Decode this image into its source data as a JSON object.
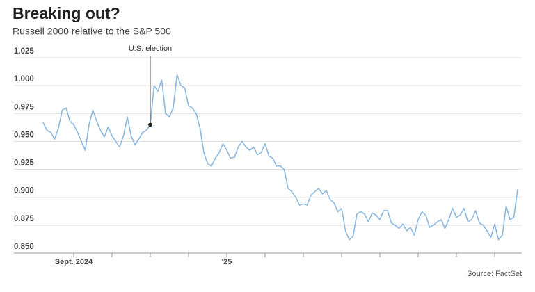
{
  "chart_data": {
    "type": "line",
    "title": "Breaking out?",
    "subtitle": "Russell 2000 relative to the S&P 500",
    "source": "Source: FactSet",
    "categories": [
      null,
      null,
      null,
      null,
      null,
      null,
      null,
      null,
      "Sept. 2024",
      null,
      null,
      null,
      null,
      null,
      null,
      null,
      null,
      null,
      null,
      null,
      null,
      null,
      null,
      null,
      null,
      null,
      null,
      null,
      null,
      null,
      null,
      null,
      null,
      null,
      null,
      null,
      null,
      null,
      null,
      null,
      null,
      null,
      null,
      null,
      null,
      null,
      null,
      null,
      "'25",
      null,
      null,
      null,
      null,
      null,
      null,
      null,
      null,
      null,
      null,
      null,
      null,
      null,
      null,
      null,
      null,
      null,
      null,
      null,
      null,
      null,
      null,
      null,
      null,
      null,
      null,
      null,
      null,
      null,
      null,
      null,
      null,
      null,
      null,
      null,
      null,
      null,
      null,
      null,
      null,
      null,
      null,
      null,
      null,
      null,
      null,
      null,
      null,
      null,
      null,
      null,
      null,
      null,
      null,
      null,
      null,
      null,
      null,
      null,
      null,
      null,
      null,
      null,
      null,
      null,
      null,
      null,
      null,
      null,
      null,
      null,
      null,
      null,
      null,
      null,
      null
    ],
    "series": [
      {
        "name": "Russell 2000 / S&P 500",
        "color": "#8db8e0",
        "values": [
          0.967,
          0.96,
          0.958,
          0.952,
          0.962,
          0.978,
          0.98,
          0.968,
          0.965,
          0.958,
          0.95,
          0.942,
          0.965,
          0.978,
          0.968,
          0.96,
          0.954,
          0.963,
          0.955,
          0.95,
          0.945,
          0.955,
          0.972,
          0.955,
          0.947,
          0.952,
          0.958,
          0.96,
          0.965,
          1.0,
          0.995,
          1.005,
          0.975,
          0.972,
          0.98,
          1.01,
          1.0,
          0.998,
          0.982,
          0.98,
          0.975,
          0.962,
          0.94,
          0.93,
          0.928,
          0.935,
          0.94,
          0.948,
          0.942,
          0.935,
          0.936,
          0.945,
          0.95,
          0.945,
          0.942,
          0.945,
          0.938,
          0.94,
          0.948,
          0.937,
          0.935,
          0.928,
          0.928,
          0.925,
          0.908,
          0.905,
          0.9,
          0.893,
          0.894,
          0.893,
          0.902,
          0.905,
          0.908,
          0.903,
          0.906,
          0.898,
          0.895,
          0.887,
          0.89,
          0.87,
          0.862,
          0.865,
          0.885,
          0.887,
          0.885,
          0.878,
          0.886,
          0.884,
          0.88,
          0.888,
          0.888,
          0.877,
          0.875,
          0.872,
          0.876,
          0.87,
          0.873,
          0.866,
          0.88,
          0.887,
          0.884,
          0.873,
          0.875,
          0.878,
          0.88,
          0.872,
          0.88,
          0.89,
          0.882,
          0.884,
          0.89,
          0.878,
          0.88,
          0.888,
          0.877,
          0.875,
          0.87,
          0.864,
          0.876,
          0.862,
          0.866,
          0.892,
          0.88,
          0.882,
          0.907
        ]
      }
    ],
    "xticks": [
      8,
      18,
      28,
      38,
      48,
      58,
      68,
      78,
      88,
      98,
      108,
      118
    ],
    "ylim": [
      0.85,
      1.025
    ],
    "yticks": [
      {
        "value": 0.85,
        "label": "0.850"
      },
      {
        "value": 0.875,
        "label": "0.875"
      },
      {
        "value": 0.9,
        "label": "0.900"
      },
      {
        "value": 0.925,
        "label": "0.925"
      },
      {
        "value": 0.95,
        "label": "0.950"
      },
      {
        "value": 0.975,
        "label": "0.975"
      },
      {
        "value": 1,
        "label": "1.000"
      },
      {
        "value": 1.025,
        "label": "1.025"
      }
    ],
    "grid": true,
    "annotations": [
      {
        "text": "U.S. election",
        "index": 28
      }
    ]
  }
}
